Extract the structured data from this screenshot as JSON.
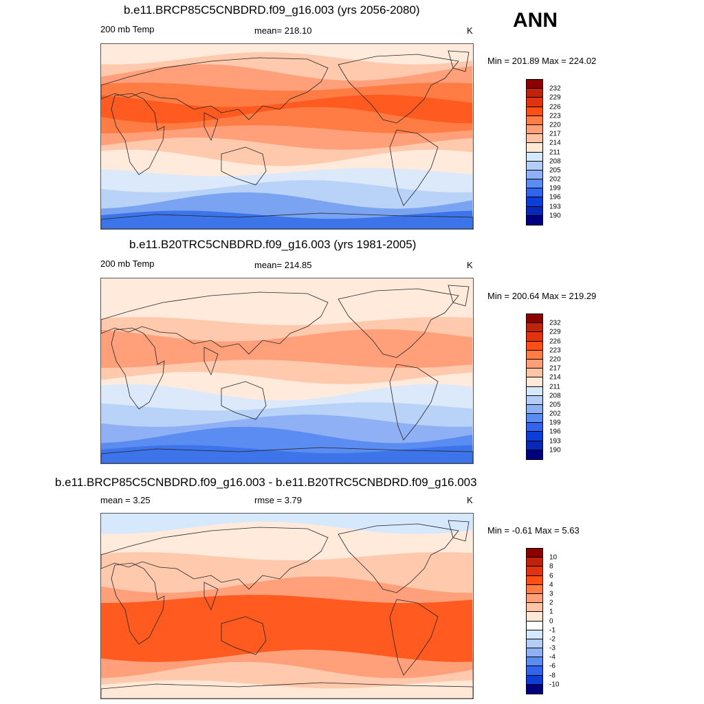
{
  "header": {
    "season": "ANN"
  },
  "panels": [
    {
      "title": "b.e11.BRCP85C5CNBDRD.f09_g16.003 (yrs 2056-2080)",
      "left_label": "200 mb Temp",
      "center_label": "mean= 218.10",
      "units": "K",
      "minmax": "Min = 201.89 Max = 224.02",
      "colorbar": {
        "labels": [
          "232",
          "229",
          "226",
          "223",
          "220",
          "217",
          "214",
          "211",
          "208",
          "205",
          "202",
          "199",
          "196",
          "193",
          "190"
        ],
        "colors": [
          "#8b0000",
          "#c0230b",
          "#e0330e",
          "#ff4f16",
          "#ff7d45",
          "#ffa079",
          "#ffc4a6",
          "#ffe8d6",
          "#d6e8fb",
          "#b3cdf7",
          "#8fb0f4",
          "#5a8cf2",
          "#3263ed",
          "#0d3fd8",
          "#0a28b8",
          "#00007e"
        ]
      },
      "bands": [
        "#3d74ea",
        "#7aa4f2",
        "#b9d2f8",
        "#dbe9fb",
        "#ffeadb",
        "#ffc9ad",
        "#ffa07a",
        "#ff7d45",
        "#ff5a1f",
        "#ff7d45",
        "#ffa07a",
        "#ffc9ad",
        "#ffeadb"
      ]
    },
    {
      "title": "b.e11.B20TRC5CNBDRD.f09_g16.003 (yrs 1981-2005)",
      "left_label": "200 mb Temp",
      "center_label": "mean= 214.85",
      "units": "K",
      "minmax": "Min = 200.64 Max = 219.29",
      "colorbar": {
        "labels": [
          "232",
          "229",
          "226",
          "223",
          "220",
          "217",
          "214",
          "211",
          "208",
          "205",
          "202",
          "199",
          "196",
          "193",
          "190"
        ],
        "colors": [
          "#8b0000",
          "#c0230b",
          "#e0330e",
          "#ff4f16",
          "#ff7d45",
          "#ffa079",
          "#ffc4a6",
          "#ffe8d6",
          "#d6e8fb",
          "#b3cdf7",
          "#8fb0f4",
          "#5a8cf2",
          "#3263ed",
          "#0d3fd8",
          "#0a28b8",
          "#00007e"
        ]
      },
      "bands": [
        "#3d74ea",
        "#5a8cf2",
        "#8fb0f4",
        "#b9d2f8",
        "#dbe9fb",
        "#ffeadb",
        "#ffc9ad",
        "#ffa07a",
        "#ffa07a",
        "#ffc9ad",
        "#ffeadb",
        "#ffeadb",
        "#ffeadb"
      ]
    },
    {
      "title": "b.e11.BRCP85C5CNBDRD.f09_g16.003 - b.e11.B20TRC5CNBDRD.f09_g16.003",
      "left_label": "mean =   3.25",
      "center_label": "rmse =   3.79",
      "units": "K",
      "minmax": "Min =  -0.61 Max =   5.63",
      "colorbar": {
        "labels": [
          "10",
          "8",
          "6",
          "4",
          "3",
          "2",
          "1",
          "0",
          "-1",
          "-2",
          "-3",
          "-4",
          "-6",
          "-8",
          "-10"
        ],
        "colors": [
          "#8b0000",
          "#c0230b",
          "#e0330e",
          "#ff4f16",
          "#ff7d45",
          "#ffa079",
          "#ffc4a6",
          "#ffe8d6",
          "#ffffff",
          "#d6e8fb",
          "#b3cdf7",
          "#8fb0f4",
          "#5a8cf2",
          "#3263ed",
          "#0d3fd8",
          "#00007e"
        ]
      },
      "bands": [
        "#ffe8d6",
        "#ffc9ad",
        "#ffa07a",
        "#ff5a1f",
        "#ff5a1f",
        "#ff5a1f",
        "#ff5a1f",
        "#ffa07a",
        "#ffc9ad",
        "#ffc9ad",
        "#ffeadb",
        "#ffeadb",
        "#d6e8fb"
      ]
    }
  ]
}
